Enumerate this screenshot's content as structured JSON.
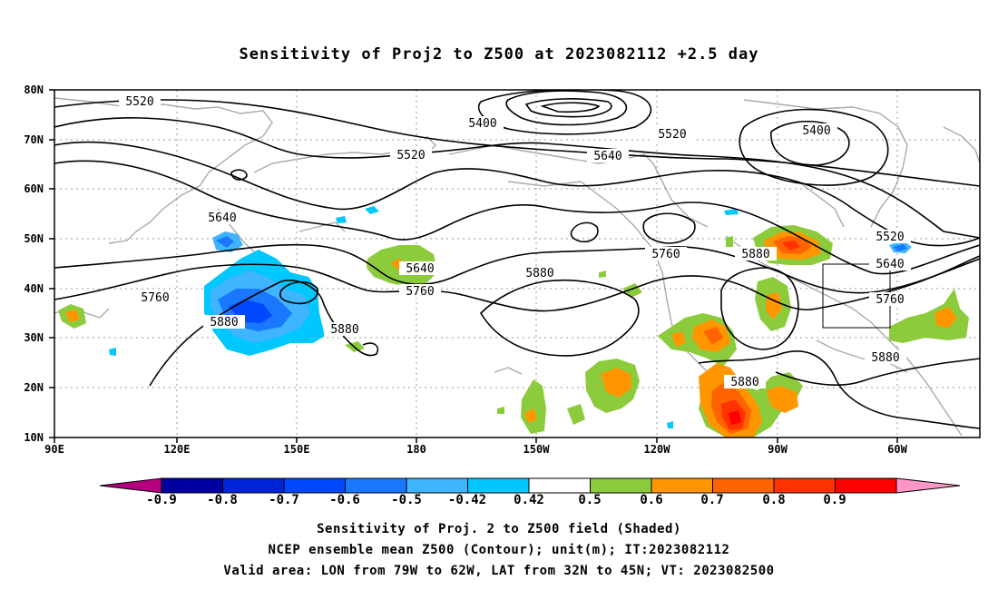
{
  "title": "Sensitivity of Proj2 to Z500 at 2023082112 +2.5 day",
  "colors": {
    "land_outline": "#aaaaaa",
    "grid": "#9a9a9a",
    "contour": "#000000"
  },
  "y_axis_labels": [
    "80N",
    "70N",
    "60N",
    "50N",
    "40N",
    "30N",
    "20N",
    "10N"
  ],
  "x_axis_labels": [
    "90E",
    "120E",
    "150E",
    "180",
    "150W",
    "120W",
    "90W",
    "60W"
  ],
  "contour_labels": [
    "5520",
    "5400",
    "5520",
    "5400",
    "5520",
    "5640",
    "5520",
    "5640",
    "5760",
    "5640",
    "5760",
    "5880",
    "5760",
    "5880",
    "5880",
    "5880",
    "5760",
    "5640",
    "5880",
    "5880"
  ],
  "colorbar": {
    "labels": [
      "-0.9",
      "-0.8",
      "-0.7",
      "-0.6",
      "-0.5",
      "-0.42",
      "0.42",
      "0.5",
      "0.6",
      "0.7",
      "0.8",
      "0.9"
    ],
    "colors": [
      "#b4007e",
      "#0000a0",
      "#0024d8",
      "#0048ff",
      "#1a78ff",
      "#3fb4ff",
      "#00c8ff",
      "#ffffff",
      "#8ccc3c",
      "#ff9600",
      "#ff6400",
      "#ff3200",
      "#ff0000",
      "#ff96c8"
    ]
  },
  "captions": [
    "Sensitivity of Proj. 2 to Z500 field (Shaded)",
    "NCEP ensemble mean Z500 (Contour); unit(m); IT:2023082112",
    "Valid area: LON from 79W to 62W, LAT from 32N to 45N; VT: 2023082500"
  ]
}
